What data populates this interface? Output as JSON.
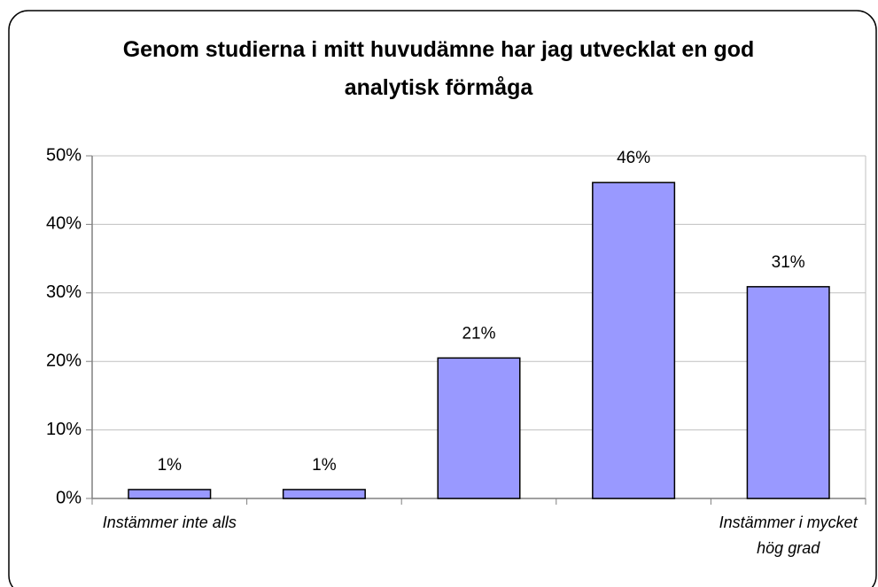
{
  "chart_data": {
    "type": "bar",
    "title": "Genom studierna i mitt huvudämne har jag utvecklat en god analytisk förmåga",
    "categories": [
      "Instämmer inte alls",
      null,
      null,
      null,
      "Instämmer i mycket hög grad"
    ],
    "values": [
      1.3,
      1.3,
      20.5,
      46.1,
      30.9
    ],
    "value_labels": [
      "1%",
      "1%",
      "21%",
      "46%",
      "31%"
    ],
    "color": "#9999ff",
    "ylim": [
      0,
      50
    ],
    "yticks": [
      {
        "value": 0,
        "label": "0%"
      },
      {
        "value": 10,
        "label": "10%"
      },
      {
        "value": 20,
        "label": "20%"
      },
      {
        "value": 30,
        "label": "30%"
      },
      {
        "value": 40,
        "label": "40%"
      },
      {
        "value": 50,
        "label": "50%"
      }
    ],
    "grid": true
  }
}
